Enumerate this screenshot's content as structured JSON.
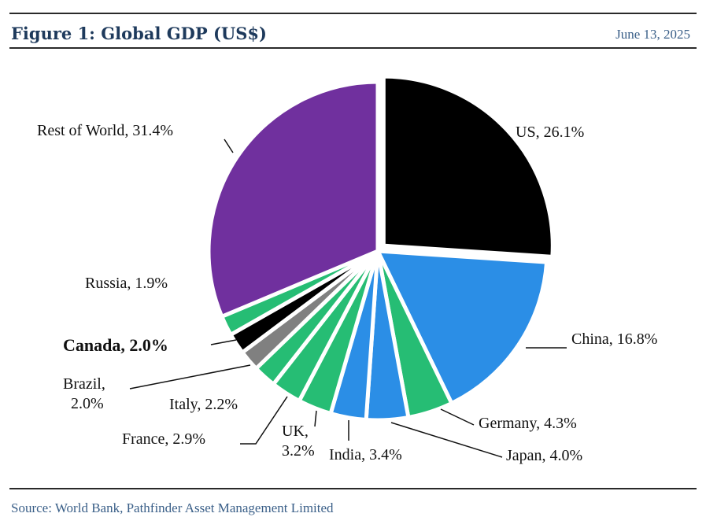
{
  "header": {
    "title": "Figure 1: Global GDP (US$)",
    "date": "June 13, 2025"
  },
  "footer": {
    "source": "Source: World Bank, Pathfinder Asset Management Limited"
  },
  "chart_data": {
    "type": "pie",
    "title": "Figure 1: Global GDP (US$)",
    "unit": "%",
    "slices": [
      {
        "label": "US",
        "value": 26.1,
        "text": "US, 26.1%",
        "color": "#000000"
      },
      {
        "label": "China",
        "value": 16.8,
        "text": "China, 16.8%",
        "color": "#2b8ee6"
      },
      {
        "label": "Germany",
        "value": 4.3,
        "text": "Germany, 4.3%",
        "color": "#26bd74"
      },
      {
        "label": "Japan",
        "value": 4.0,
        "text": "Japan, 4.0%",
        "color": "#2b8ee6"
      },
      {
        "label": "India",
        "value": 3.4,
        "text": "India, 3.4%",
        "color": "#2b8ee6"
      },
      {
        "label": "UK",
        "value": 3.2,
        "text": "UK, 3.2%",
        "color": "#26bd74"
      },
      {
        "label": "France",
        "value": 2.9,
        "text": "France, 2.9%",
        "color": "#26bd74"
      },
      {
        "label": "Italy",
        "value": 2.2,
        "text": "Italy, 2.2%",
        "color": "#26bd74"
      },
      {
        "label": "Brazil",
        "value": 2.0,
        "text": "Brazil, 2.0%",
        "color": "#808080"
      },
      {
        "label": "Canada",
        "value": 2.0,
        "text": "Canada, 2.0%",
        "color": "#000000"
      },
      {
        "label": "Russia",
        "value": 1.9,
        "text": "Russia, 1.9%",
        "color": "#26bd74"
      },
      {
        "label": "Rest of World",
        "value": 31.4,
        "text": "Rest of World, 31.4%",
        "color": "#70309e"
      }
    ],
    "legend": "none"
  }
}
